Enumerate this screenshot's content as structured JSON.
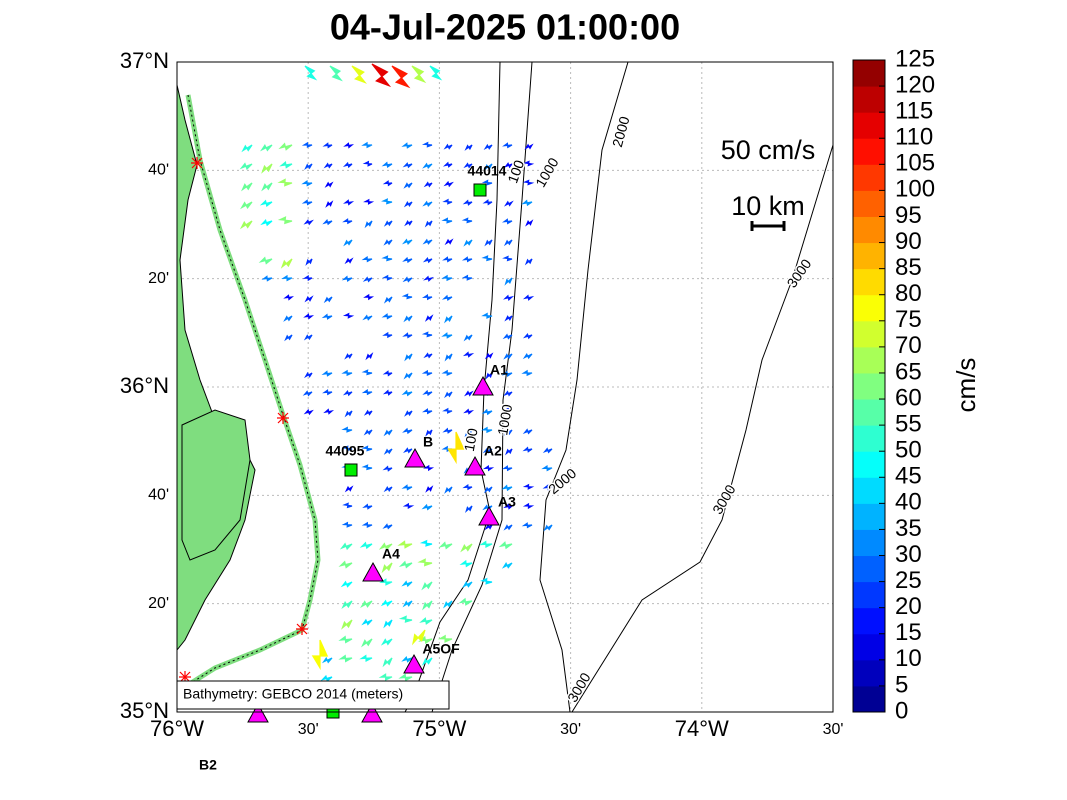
{
  "title": "04-Jul-2025 01:00:00",
  "lat_ticks": [
    "37°N",
    "40'",
    "20'",
    "36°N",
    "40'",
    "20'",
    "35°N"
  ],
  "lon_ticks": [
    "76°W",
    "30'",
    "75°W",
    "30'",
    "74°W",
    "30'"
  ],
  "colorbar": {
    "label": "cm/s",
    "ticks": [
      0,
      5,
      10,
      15,
      20,
      25,
      30,
      35,
      40,
      45,
      50,
      55,
      60,
      65,
      70,
      75,
      80,
      85,
      90,
      95,
      100,
      105,
      110,
      115,
      120,
      125
    ]
  },
  "scale": {
    "speed": "50 cm/s",
    "distance": "10 km"
  },
  "stations": [
    "44014",
    "44095",
    "A1",
    "A2",
    "A3",
    "A4",
    "A5OF",
    "B",
    "B2"
  ],
  "contour_labels": [
    "100",
    "1000",
    "2000",
    "3000"
  ],
  "note": "Bathymetry: GEBCO 2014 (meters)"
}
